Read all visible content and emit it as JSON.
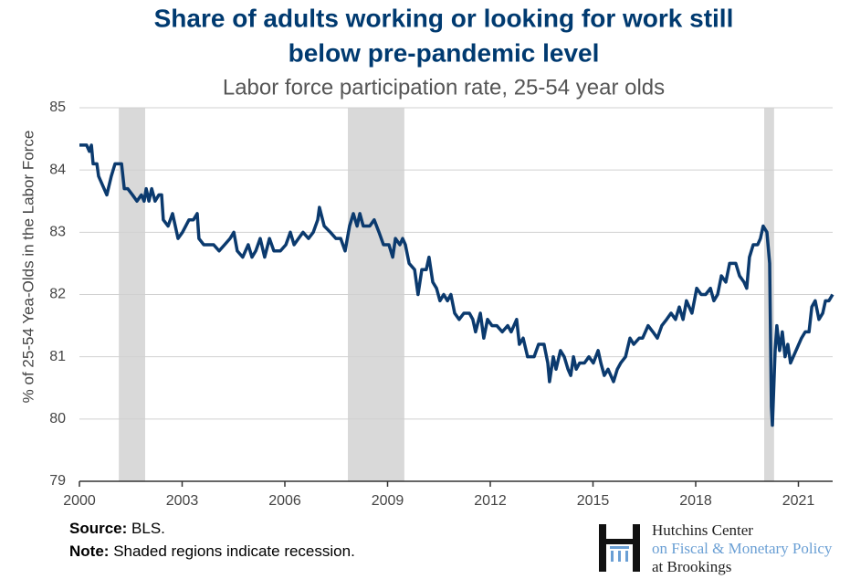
{
  "chart_data": {
    "type": "line",
    "title": [
      "Share of adults working or looking for work still",
      "below pre-pandemic level"
    ],
    "subtitle": "Labor force participation rate, 25-54 year olds",
    "y_label": "% of 25-54 Yea-Olds in the Labor Force",
    "xlim": [
      2000,
      2022
    ],
    "xticks": [
      2000,
      2003,
      2006,
      2009,
      2012,
      2015,
      2018,
      2021
    ],
    "ylim": [
      79,
      85
    ],
    "yticks": [
      79,
      80,
      81,
      82,
      83,
      84,
      85
    ],
    "grid": true,
    "recessions": [
      [
        2001.15,
        2001.92
      ],
      [
        2007.84,
        2009.49
      ],
      [
        2020.0,
        2020.29
      ]
    ],
    "recession_color": "#d9d9d9",
    "series": [
      {
        "name": "Labor force participation rate",
        "color": "#0b3a6e",
        "x": [
          2000.0,
          2000.21,
          2000.29,
          2000.35,
          2000.4,
          2000.51,
          2000.56,
          2000.8,
          2000.93,
          2001.04,
          2001.23,
          2001.31,
          2001.41,
          2001.55,
          2001.68,
          2001.81,
          2001.89,
          2001.95,
          2002.03,
          2002.11,
          2002.21,
          2002.32,
          2002.4,
          2002.45,
          2002.59,
          2002.72,
          2002.88,
          2003.01,
          2003.2,
          2003.33,
          2003.44,
          2003.49,
          2003.63,
          2003.76,
          2003.92,
          2004.08,
          2004.24,
          2004.4,
          2004.51,
          2004.61,
          2004.77,
          2004.93,
          2005.04,
          2005.15,
          2005.28,
          2005.41,
          2005.55,
          2005.68,
          2005.87,
          2006.03,
          2006.16,
          2006.27,
          2006.4,
          2006.53,
          2006.69,
          2006.83,
          2006.96,
          2007.01,
          2007.15,
          2007.33,
          2007.49,
          2007.63,
          2007.76,
          2007.89,
          2008.0,
          2008.11,
          2008.19,
          2008.29,
          2008.48,
          2008.61,
          2008.75,
          2008.88,
          2009.04,
          2009.15,
          2009.23,
          2009.36,
          2009.44,
          2009.52,
          2009.63,
          2009.79,
          2009.89,
          2010.0,
          2010.13,
          2010.21,
          2010.32,
          2010.43,
          2010.53,
          2010.64,
          2010.75,
          2010.85,
          2010.96,
          2011.09,
          2011.23,
          2011.39,
          2011.49,
          2011.57,
          2011.71,
          2011.81,
          2011.92,
          2012.05,
          2012.19,
          2012.35,
          2012.51,
          2012.61,
          2012.77,
          2012.85,
          2012.96,
          2013.09,
          2013.28,
          2013.41,
          2013.57,
          2013.68,
          2013.73,
          2013.84,
          2013.92,
          2014.05,
          2014.16,
          2014.27,
          2014.35,
          2014.43,
          2014.51,
          2014.61,
          2014.75,
          2014.88,
          2015.01,
          2015.15,
          2015.23,
          2015.33,
          2015.44,
          2015.6,
          2015.71,
          2015.81,
          2015.95,
          2016.08,
          2016.19,
          2016.35,
          2016.45,
          2016.61,
          2016.75,
          2016.88,
          2017.01,
          2017.15,
          2017.28,
          2017.41,
          2017.52,
          2017.63,
          2017.73,
          2017.89,
          2018.03,
          2018.16,
          2018.29,
          2018.43,
          2018.53,
          2018.64,
          2018.75,
          2018.88,
          2018.99,
          2019.17,
          2019.28,
          2019.41,
          2019.49,
          2019.57,
          2019.68,
          2019.81,
          2019.89,
          2019.97,
          2020.08,
          2020.16,
          2020.21,
          2020.24,
          2020.32,
          2020.37,
          2020.45,
          2020.53,
          2020.61,
          2020.69,
          2020.77,
          2020.93,
          2021.09,
          2021.2,
          2021.31,
          2021.39,
          2021.49,
          2021.6,
          2021.71,
          2021.79,
          2021.89,
          2022.0
        ],
        "values": [
          84.4,
          84.4,
          84.3,
          84.4,
          84.1,
          84.1,
          83.9,
          83.6,
          83.9,
          84.1,
          84.1,
          83.7,
          83.7,
          83.6,
          83.5,
          83.6,
          83.5,
          83.7,
          83.5,
          83.7,
          83.5,
          83.6,
          83.6,
          83.2,
          83.1,
          83.3,
          82.9,
          83.0,
          83.2,
          83.2,
          83.3,
          82.9,
          82.8,
          82.8,
          82.8,
          82.7,
          82.8,
          82.9,
          83.0,
          82.7,
          82.6,
          82.8,
          82.6,
          82.7,
          82.9,
          82.6,
          82.9,
          82.7,
          82.7,
          82.8,
          83.0,
          82.8,
          82.9,
          83.0,
          82.9,
          83.0,
          83.2,
          83.4,
          83.1,
          83.0,
          82.9,
          82.9,
          82.7,
          83.1,
          83.3,
          83.1,
          83.3,
          83.1,
          83.1,
          83.2,
          83.0,
          82.8,
          82.8,
          82.6,
          82.9,
          82.8,
          82.9,
          82.8,
          82.5,
          82.4,
          82.0,
          82.4,
          82.4,
          82.6,
          82.2,
          82.1,
          81.9,
          82.0,
          81.9,
          82.0,
          81.7,
          81.6,
          81.7,
          81.7,
          81.6,
          81.4,
          81.7,
          81.3,
          81.6,
          81.5,
          81.5,
          81.4,
          81.5,
          81.4,
          81.6,
          81.2,
          81.3,
          81.0,
          81.0,
          81.2,
          81.2,
          80.9,
          80.6,
          81.0,
          80.8,
          81.1,
          81.0,
          80.8,
          80.7,
          81.0,
          80.8,
          80.9,
          80.9,
          81.0,
          80.9,
          81.1,
          80.9,
          80.7,
          80.8,
          80.6,
          80.8,
          80.9,
          81.0,
          81.3,
          81.2,
          81.3,
          81.3,
          81.5,
          81.4,
          81.3,
          81.5,
          81.6,
          81.7,
          81.6,
          81.8,
          81.6,
          81.9,
          81.7,
          82.1,
          82.0,
          82.0,
          82.1,
          81.9,
          82.0,
          82.3,
          82.2,
          82.5,
          82.5,
          82.3,
          82.2,
          82.1,
          82.6,
          82.8,
          82.8,
          82.9,
          83.1,
          83.0,
          82.5,
          80.2,
          79.9,
          81.1,
          81.5,
          81.1,
          81.4,
          81.0,
          81.2,
          80.9,
          81.1,
          81.3,
          81.4,
          81.4,
          81.8,
          81.9,
          81.6,
          81.7,
          81.9,
          81.9,
          82.0
        ]
      }
    ]
  },
  "footer": {
    "source_label": "Source:",
    "source": "BLS.",
    "note_label": "Note:",
    "note": "Shaded regions indicate recession.",
    "logo": [
      "Hutchins Center",
      "on Fiscal & Monetary Policy",
      "at Brookings"
    ]
  }
}
